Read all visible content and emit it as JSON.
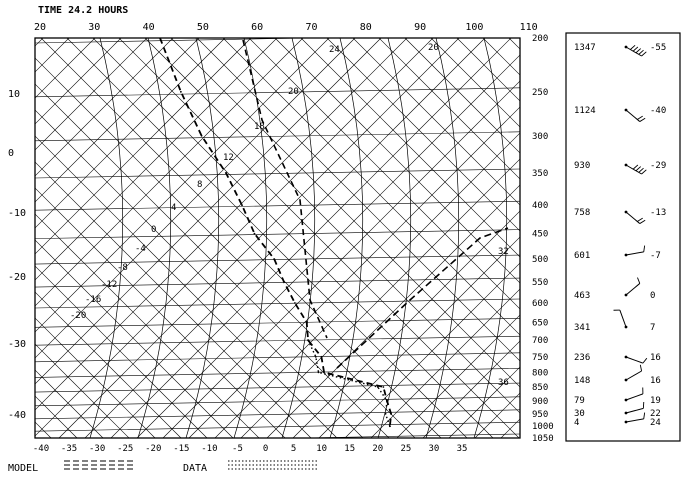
{
  "chart_data": {
    "type": "skew-t sounding (line)",
    "title": "TIME 24.2 HOURS",
    "top_axis_ticks": [
      "20",
      "30",
      "40",
      "50",
      "60",
      "70",
      "80",
      "90",
      "100",
      "110"
    ],
    "bottom_axis_ticks": [
      "-40",
      "-35",
      "-30",
      "-25",
      "-20",
      "-15",
      "-10",
      "-5",
      "0",
      "5",
      "10",
      "15",
      "20",
      "25",
      "30",
      "35"
    ],
    "left_axis_ticks": [
      "10",
      "0",
      "-10",
      "-20",
      "-30",
      "-40"
    ],
    "pressure_axis": {
      "ticks": [
        "200",
        "250",
        "300",
        "350",
        "400",
        "450",
        "500",
        "550",
        "600",
        "650",
        "700",
        "750",
        "800",
        "850",
        "900",
        "950",
        "1000",
        "1050"
      ],
      "ylim": [
        1050,
        200
      ]
    },
    "in_plot_labels": [
      "24",
      "20",
      "20",
      "18",
      "12",
      "8",
      "4",
      "0",
      "-4",
      "-8",
      "-12",
      "-16",
      "-20",
      "32",
      "36"
    ],
    "legend": [
      {
        "label": "MODEL",
        "style": "dashed"
      },
      {
        "label": "DATA",
        "style": "dotted"
      }
    ],
    "series": [
      {
        "name": "MODEL",
        "style": "dashed",
        "points": [
          {
            "p": 200,
            "t": -58
          },
          {
            "p": 250,
            "t": -49
          },
          {
            "p": 300,
            "t": -41
          },
          {
            "p": 350,
            "t": -33
          },
          {
            "p": 400,
            "t": -27
          },
          {
            "p": 450,
            "t": -22
          },
          {
            "p": 500,
            "t": -16
          },
          {
            "p": 550,
            "t": -12
          },
          {
            "p": 600,
            "t": -8
          },
          {
            "p": 650,
            "t": -4
          },
          {
            "p": 700,
            "t": -2
          },
          {
            "p": 750,
            "t": 2
          },
          {
            "p": 800,
            "t": 4
          },
          {
            "p": 850,
            "t": 16
          },
          {
            "p": 900,
            "t": 18
          },
          {
            "p": 950,
            "t": 20
          },
          {
            "p": 1000,
            "t": 21
          }
        ]
      },
      {
        "name": "DATA",
        "style": "dotted",
        "points": [
          {
            "p": 700,
            "t": -2
          },
          {
            "p": 750,
            "t": 1
          },
          {
            "p": 800,
            "t": 3
          },
          {
            "p": 850,
            "t": 15
          },
          {
            "p": 900,
            "t": 18
          },
          {
            "p": 950,
            "t": 19
          },
          {
            "p": 1000,
            "t": 21
          }
        ]
      }
    ],
    "wind_rows": [
      {
        "height": "1347",
        "temp": "-55",
        "dir": 300,
        "spd": 50
      },
      {
        "height": "1124",
        "temp": "-40",
        "dir": 310,
        "spd": 20
      },
      {
        "height": "930",
        "temp": "-29",
        "dir": 300,
        "spd": 35
      },
      {
        "height": "758",
        "temp": "-13",
        "dir": 310,
        "spd": 15
      },
      {
        "height": "601",
        "temp": "-7",
        "dir": 260,
        "spd": 10
      },
      {
        "height": "463",
        "temp": "0",
        "dir": 230,
        "spd": 5
      },
      {
        "height": "341",
        "temp": "7",
        "dir": 160,
        "spd": 5
      },
      {
        "height": "236",
        "temp": "16",
        "dir": 290,
        "spd": 10
      },
      {
        "height": "148",
        "temp": "16",
        "dir": 240,
        "spd": 10
      },
      {
        "height": "79",
        "temp": "19",
        "dir": 250,
        "spd": 10
      },
      {
        "height": "30",
        "temp": "22",
        "dir": 255,
        "spd": 10
      },
      {
        "height": "4",
        "temp": "24",
        "dir": 260,
        "spd": 10
      }
    ]
  }
}
